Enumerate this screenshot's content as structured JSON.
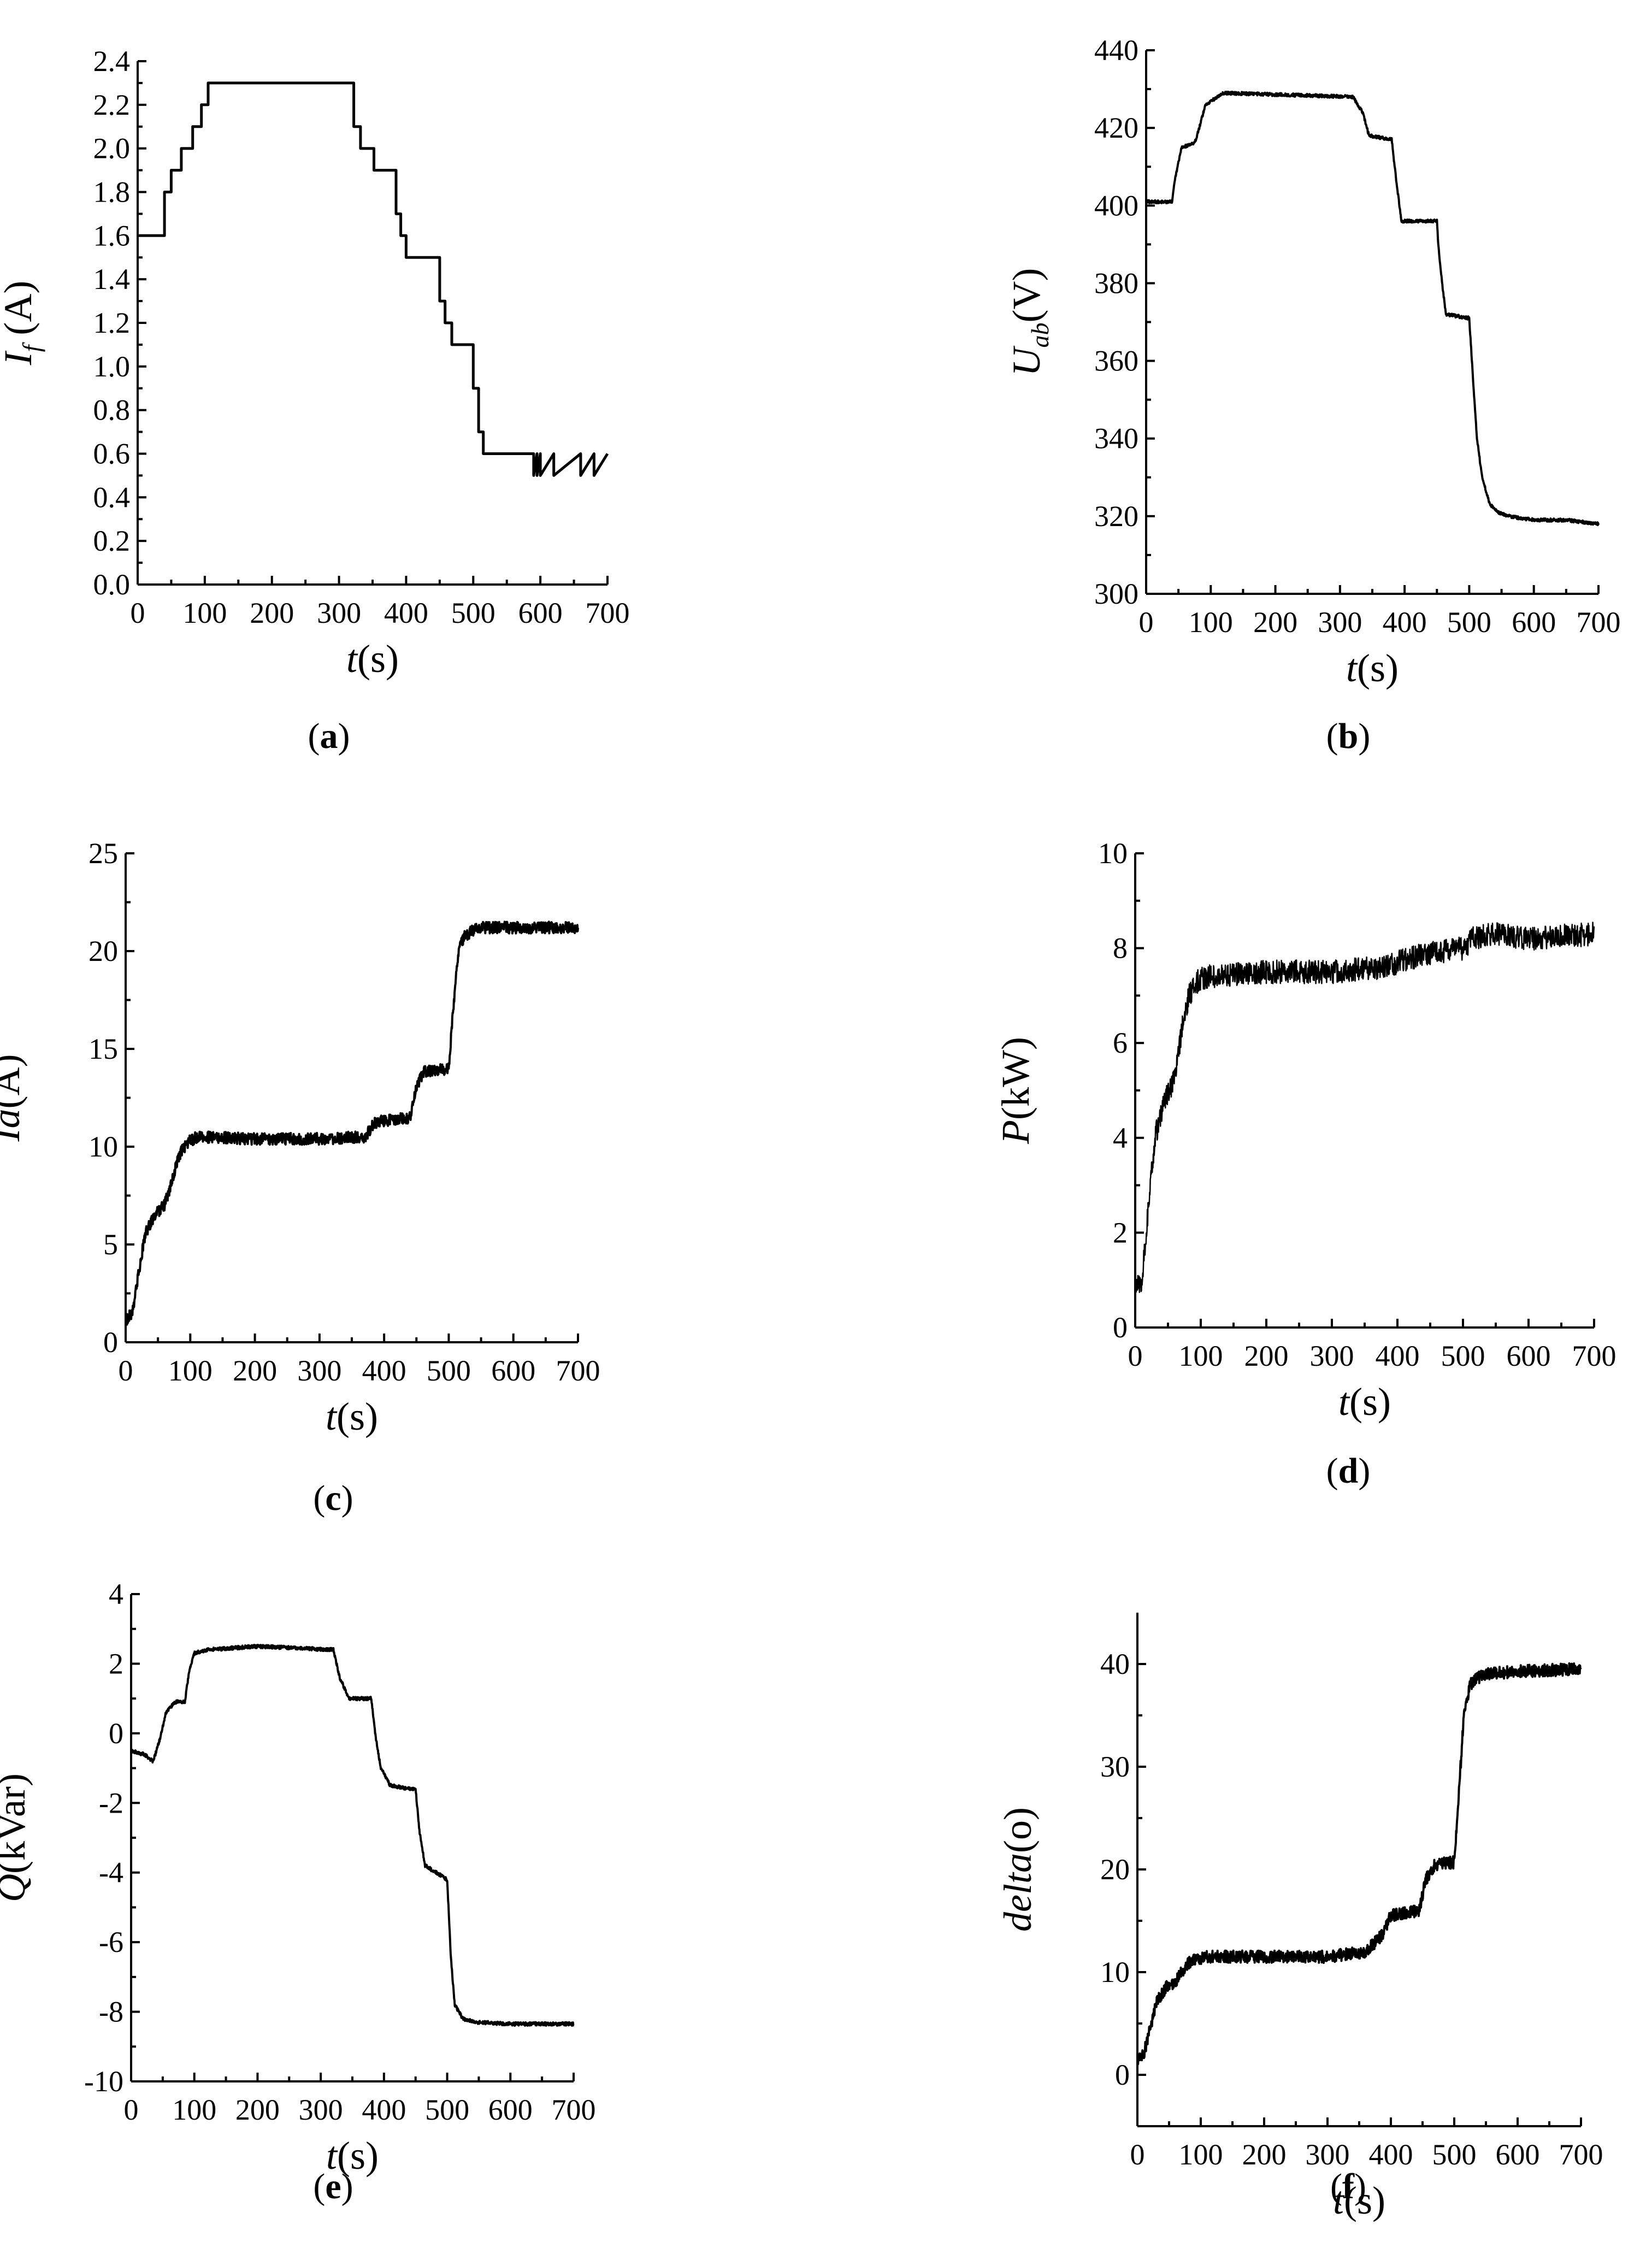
{
  "chart_data": [
    {
      "id": "a",
      "type": "line",
      "caption_letter": "a",
      "xlabel_var": "t",
      "xlabel_unit": "(s)",
      "ylabel_var": "I",
      "ylabel_sub": "f",
      "ylabel_unit": " (A)",
      "xlim": [
        0,
        700
      ],
      "ylim": [
        0,
        2.4
      ],
      "xticks": [
        0,
        100,
        200,
        300,
        400,
        500,
        600,
        700
      ],
      "yticks": [
        0.0,
        0.2,
        0.4,
        0.6,
        0.8,
        1.0,
        1.2,
        1.4,
        1.6,
        1.8,
        2.0,
        2.2,
        2.4
      ],
      "ytick_labels": [
        "0.0",
        "0.2",
        "0.4",
        "0.6",
        "0.8",
        "1.0",
        "1.2",
        "1.4",
        "1.6",
        "1.8",
        "2.0",
        "2.2",
        "2.4"
      ],
      "x": [
        0,
        40,
        40,
        50,
        50,
        65,
        65,
        82,
        82,
        95,
        95,
        105,
        105,
        200,
        322,
        322,
        332,
        332,
        352,
        352,
        385,
        385,
        392,
        392,
        400,
        400,
        450,
        450,
        458,
        458,
        468,
        468,
        500,
        500,
        508,
        508,
        515,
        515,
        590,
        590,
        595,
        595,
        600,
        600,
        620,
        620,
        660,
        660,
        680,
        680,
        700
      ],
      "y": [
        1.6,
        1.6,
        1.8,
        1.8,
        1.9,
        1.9,
        2.0,
        2.0,
        2.1,
        2.1,
        2.2,
        2.2,
        2.3,
        2.3,
        2.3,
        2.1,
        2.1,
        2.0,
        2.0,
        1.9,
        1.9,
        1.7,
        1.7,
        1.6,
        1.6,
        1.5,
        1.5,
        1.3,
        1.3,
        1.2,
        1.2,
        1.1,
        1.1,
        0.9,
        0.9,
        0.7,
        0.7,
        0.6,
        0.6,
        0.5,
        0.6,
        0.5,
        0.6,
        0.5,
        0.6,
        0.5,
        0.6,
        0.5,
        0.6,
        0.5,
        0.6
      ]
    },
    {
      "id": "b",
      "type": "line",
      "caption_letter": "b",
      "xlabel_var": "t",
      "xlabel_unit": "(s)",
      "ylabel_var": "U",
      "ylabel_sub": "ab",
      "ylabel_unit": "(V)",
      "xlim": [
        0,
        700
      ],
      "ylim": [
        300,
        440
      ],
      "xticks": [
        0,
        100,
        200,
        300,
        400,
        500,
        600,
        700
      ],
      "yticks": [
        300,
        320,
        340,
        360,
        380,
        400,
        420,
        440
      ],
      "ytick_labels": [
        "300",
        "320",
        "340",
        "360",
        "380",
        "400",
        "420",
        "440"
      ],
      "x": [
        0,
        40,
        45,
        55,
        75,
        82,
        92,
        120,
        320,
        335,
        345,
        380,
        386,
        395,
        450,
        452,
        458,
        464,
        500,
        506,
        512,
        520,
        532,
        545,
        560,
        600,
        650,
        700
      ],
      "y": [
        401,
        401,
        407,
        415,
        416,
        420,
        426,
        429,
        428,
        424,
        418,
        417,
        408,
        396,
        396,
        390,
        380,
        372,
        371,
        355,
        340,
        330,
        323,
        321,
        320,
        319,
        319,
        318
      ],
      "noise": 0.4
    },
    {
      "id": "c",
      "type": "line",
      "caption_letter": "c",
      "xlabel_var": "t",
      "xlabel_unit": "(s)",
      "ylabel_var": "Ia",
      "ylabel_sub": "",
      "ylabel_unit": "(A)",
      "xlim": [
        0,
        700
      ],
      "ylim": [
        0,
        25
      ],
      "xticks": [
        0,
        100,
        200,
        300,
        400,
        500,
        600,
        700
      ],
      "yticks": [
        0,
        5,
        10,
        15,
        20,
        25
      ],
      "ytick_labels": [
        "0",
        "5",
        "10",
        "15",
        "20",
        "25"
      ],
      "x": [
        0,
        10,
        20,
        30,
        45,
        60,
        70,
        82,
        95,
        110,
        200,
        300,
        370,
        385,
        395,
        440,
        450,
        460,
        500,
        508,
        515,
        525,
        545,
        600,
        700
      ],
      "y": [
        1.1,
        1.5,
        3.5,
        5.5,
        6.5,
        7.0,
        8.0,
        9.5,
        10.2,
        10.5,
        10.4,
        10.4,
        10.5,
        11.2,
        11.3,
        11.5,
        13.0,
        13.8,
        14.0,
        17.5,
        20.0,
        20.8,
        21.2,
        21.2,
        21.2
      ],
      "noise": 0.3
    },
    {
      "id": "d",
      "type": "line",
      "caption_letter": "d",
      "xlabel_var": "t",
      "xlabel_unit": "(s)",
      "ylabel_var": "P",
      "ylabel_sub": "",
      "ylabel_unit": "(kW)",
      "xlim": [
        0,
        700
      ],
      "ylim": [
        0,
        10
      ],
      "xticks": [
        0,
        100,
        200,
        300,
        400,
        500,
        600,
        700
      ],
      "yticks": [
        0,
        2,
        4,
        6,
        8,
        10
      ],
      "ytick_labels": [
        "0",
        "2",
        "4",
        "6",
        "8",
        "10"
      ],
      "x": [
        0,
        10,
        20,
        30,
        45,
        60,
        70,
        82,
        95,
        110,
        200,
        300,
        380,
        400,
        450,
        500,
        515,
        550,
        600,
        700
      ],
      "y": [
        0.8,
        1.0,
        2.5,
        4.0,
        4.8,
        5.2,
        6.2,
        7.0,
        7.3,
        7.4,
        7.5,
        7.5,
        7.6,
        7.7,
        7.9,
        8.0,
        8.2,
        8.3,
        8.2,
        8.3
      ],
      "noise": 0.25
    },
    {
      "id": "e",
      "type": "line",
      "caption_letter": "e",
      "xlabel_var": "t",
      "xlabel_unit": "(s)",
      "ylabel_var": "Q",
      "ylabel_sub": "",
      "ylabel_unit": "(kVar)",
      "xlim": [
        0,
        700
      ],
      "ylim": [
        -10,
        4
      ],
      "xticks": [
        0,
        100,
        200,
        300,
        400,
        500,
        600,
        700
      ],
      "yticks": [
        -10,
        -8,
        -6,
        -4,
        -2,
        0,
        2,
        4
      ],
      "ytick_labels": [
        "-10",
        "-8",
        "-6",
        "-4",
        "-2",
        "0",
        "2",
        "4"
      ],
      "x": [
        0,
        20,
        35,
        45,
        55,
        70,
        85,
        92,
        100,
        120,
        200,
        320,
        330,
        345,
        380,
        386,
        395,
        410,
        440,
        450,
        456,
        465,
        500,
        506,
        512,
        525,
        545,
        600,
        700
      ],
      "y": [
        -0.5,
        -0.6,
        -0.8,
        -0.2,
        0.6,
        0.9,
        0.9,
        1.8,
        2.3,
        2.4,
        2.5,
        2.4,
        1.6,
        1.0,
        1.0,
        0.0,
        -1.0,
        -1.5,
        -1.6,
        -1.6,
        -2.8,
        -3.8,
        -4.2,
        -6.5,
        -7.8,
        -8.2,
        -8.3,
        -8.35,
        -8.35
      ],
      "noise": 0.05
    },
    {
      "id": "f",
      "type": "line",
      "caption_letter": "f",
      "xlabel_var": "t",
      "xlabel_unit": "(s)",
      "ylabel_var": "delta",
      "ylabel_sub": "",
      "ylabel_unit": "(o)",
      "xlim": [
        0,
        700
      ],
      "ylim": [
        -5,
        45
      ],
      "xticks": [
        0,
        100,
        200,
        300,
        400,
        500,
        600,
        700
      ],
      "yticks": [
        0,
        10,
        20,
        30,
        40
      ],
      "ytick_labels": [
        "0",
        "10",
        "20",
        "30",
        "40"
      ],
      "x": [
        0,
        10,
        20,
        30,
        45,
        60,
        70,
        82,
        95,
        110,
        200,
        300,
        360,
        385,
        400,
        445,
        455,
        470,
        500,
        508,
        515,
        525,
        545,
        600,
        700
      ],
      "y": [
        1.5,
        2.0,
        4.5,
        7.0,
        8.5,
        9.0,
        10.0,
        11.0,
        11.3,
        11.5,
        11.5,
        11.5,
        12.0,
        13.5,
        15.5,
        16.0,
        19.0,
        20.5,
        20.7,
        28.0,
        35.0,
        38.0,
        39.0,
        39.3,
        39.5
      ],
      "noise": 0.6
    }
  ]
}
